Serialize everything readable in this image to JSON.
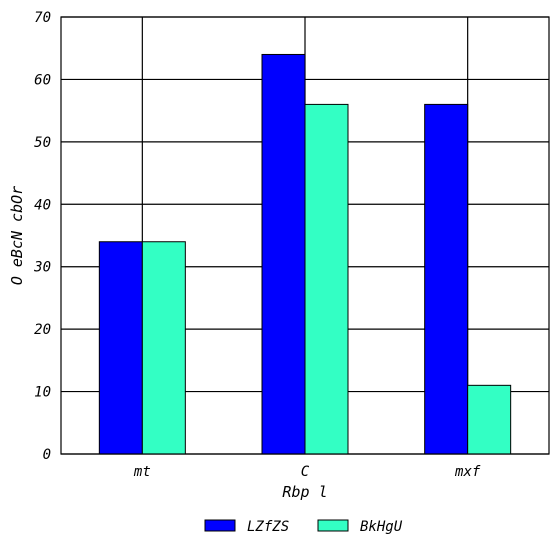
{
  "chart_data": {
    "type": "bar",
    "title": "",
    "xlabel": "Rbp l",
    "ylabel": "O eBcN cbOr",
    "categories": [
      "mt",
      "C",
      "mxf"
    ],
    "series": [
      {
        "name": "LZfZS",
        "color": "#0000ff",
        "values": [
          34,
          64,
          56
        ]
      },
      {
        "name": "BkHgU",
        "color": "#33ffc4",
        "values": [
          34,
          56,
          11
        ]
      }
    ],
    "ylim": [
      0,
      70
    ],
    "yticks": [
      0,
      10,
      20,
      30,
      40,
      50,
      60,
      70
    ],
    "grid": true,
    "legend_position": "bottom"
  }
}
